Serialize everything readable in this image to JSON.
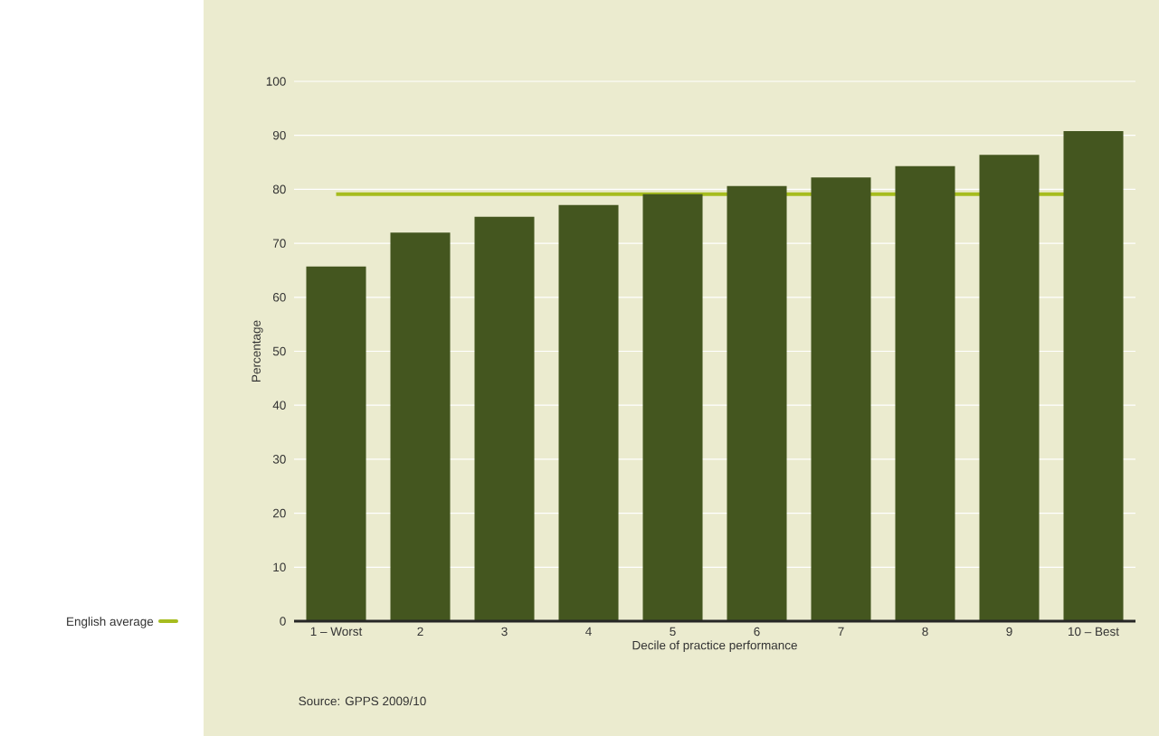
{
  "chart_data": {
    "type": "bar",
    "xlabel": "Decile of practice performance",
    "ylabel": "Percentage",
    "categories": [
      "1 – Worst",
      "2",
      "3",
      "4",
      "5",
      "6",
      "7",
      "8",
      "9",
      "10 – Best"
    ],
    "values": [
      65.7,
      72.0,
      74.9,
      77.1,
      79.1,
      80.6,
      82.2,
      84.3,
      86.4,
      90.8
    ],
    "color": "#44561f",
    "ylim": [
      0,
      100
    ],
    "yticks": [
      0,
      10,
      20,
      30,
      40,
      50,
      60,
      70,
      80,
      90,
      100
    ],
    "grid": "y",
    "legend": "left",
    "ref_lines": [
      {
        "axis": "y",
        "value": 79.1,
        "label": "English average",
        "color": "#a6bc1e"
      }
    ],
    "annotations": [
      "Source: GPPS 2009/10"
    ]
  }
}
